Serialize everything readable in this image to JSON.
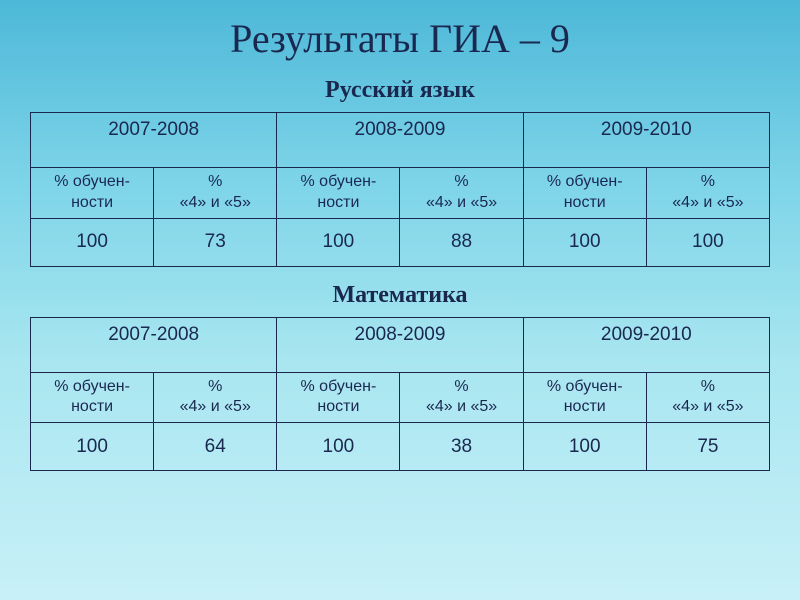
{
  "title": "Результаты ГИА – 9",
  "subjects": [
    {
      "name": "Русский язык",
      "years": [
        "2007-2008",
        "2008-2009",
        "2009-2010"
      ],
      "col1_line1": "% обучен-",
      "col1_line2": "ности",
      "col2_line1": "%",
      "col2_line2": "«4» и «5»",
      "values": [
        "100",
        "73",
        "100",
        "88",
        "100",
        "100"
      ]
    },
    {
      "name": "Математика",
      "years": [
        "2007-2008",
        "2008-2009",
        "2009-2010"
      ],
      "col1_line1": "% обучен-",
      "col1_line2": "ности",
      "col2_line1": "%",
      "col2_line2": "«4» и «5»",
      "values": [
        "100",
        "64",
        "100",
        "38",
        "100",
        "75"
      ]
    }
  ],
  "colors": {
    "text": "#1a2850",
    "border": "#1a2850",
    "bg_top": "#4db8d8",
    "bg_bottom": "#c8f0f8"
  }
}
